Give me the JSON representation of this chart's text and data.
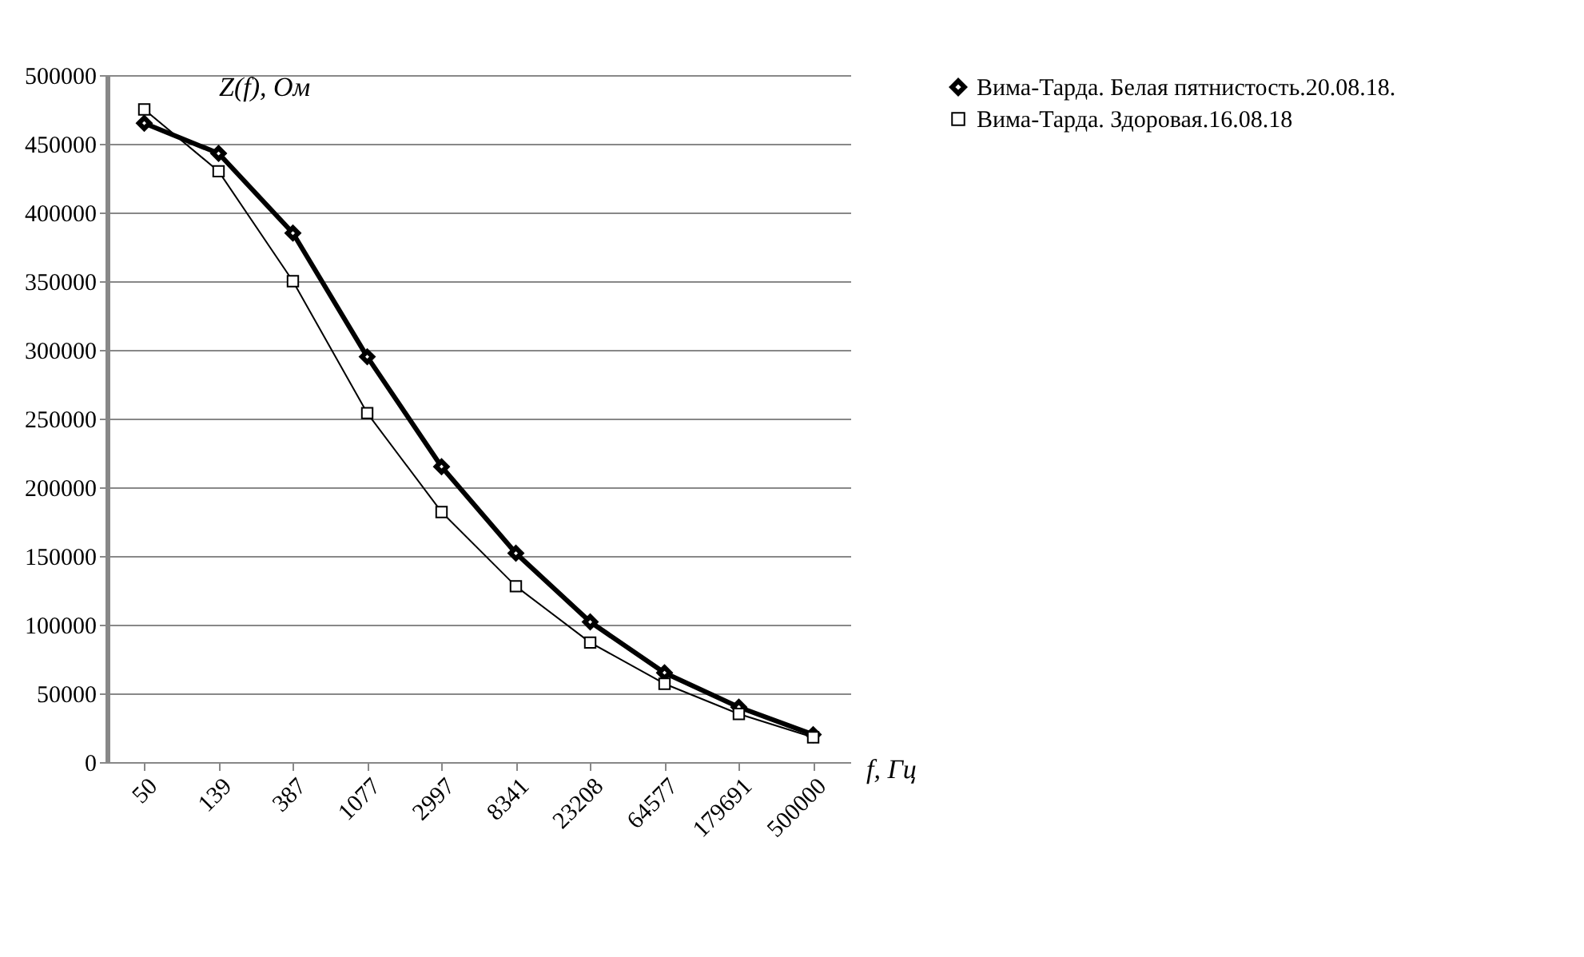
{
  "chart_data": {
    "type": "line",
    "xlabel": "f, Гц",
    "ylabel": "Z(f), Ом",
    "categories": [
      "50",
      "139",
      "387",
      "1077",
      "2997",
      "8341",
      "23208",
      "64577",
      "179691",
      "500000"
    ],
    "series": [
      {
        "name": "Вима-Тарда. Белая пятнистость.20.08.18.",
        "color": "#000000",
        "marker": "diamond",
        "values": [
          465000,
          443000,
          385000,
          295000,
          215000,
          152000,
          102000,
          65000,
          40000,
          20000
        ]
      },
      {
        "name": "Вима-Тарда. Здоровая.16.08.18",
        "color": "#000000",
        "marker": "square",
        "values": [
          475000,
          430000,
          350000,
          254000,
          182000,
          128000,
          87000,
          57000,
          35000,
          18000
        ]
      }
    ],
    "ylim": [
      0,
      500000
    ],
    "yticks": [
      0,
      50000,
      100000,
      150000,
      200000,
      250000,
      300000,
      350000,
      400000,
      450000,
      500000
    ],
    "grid": "y",
    "legend": "right"
  }
}
